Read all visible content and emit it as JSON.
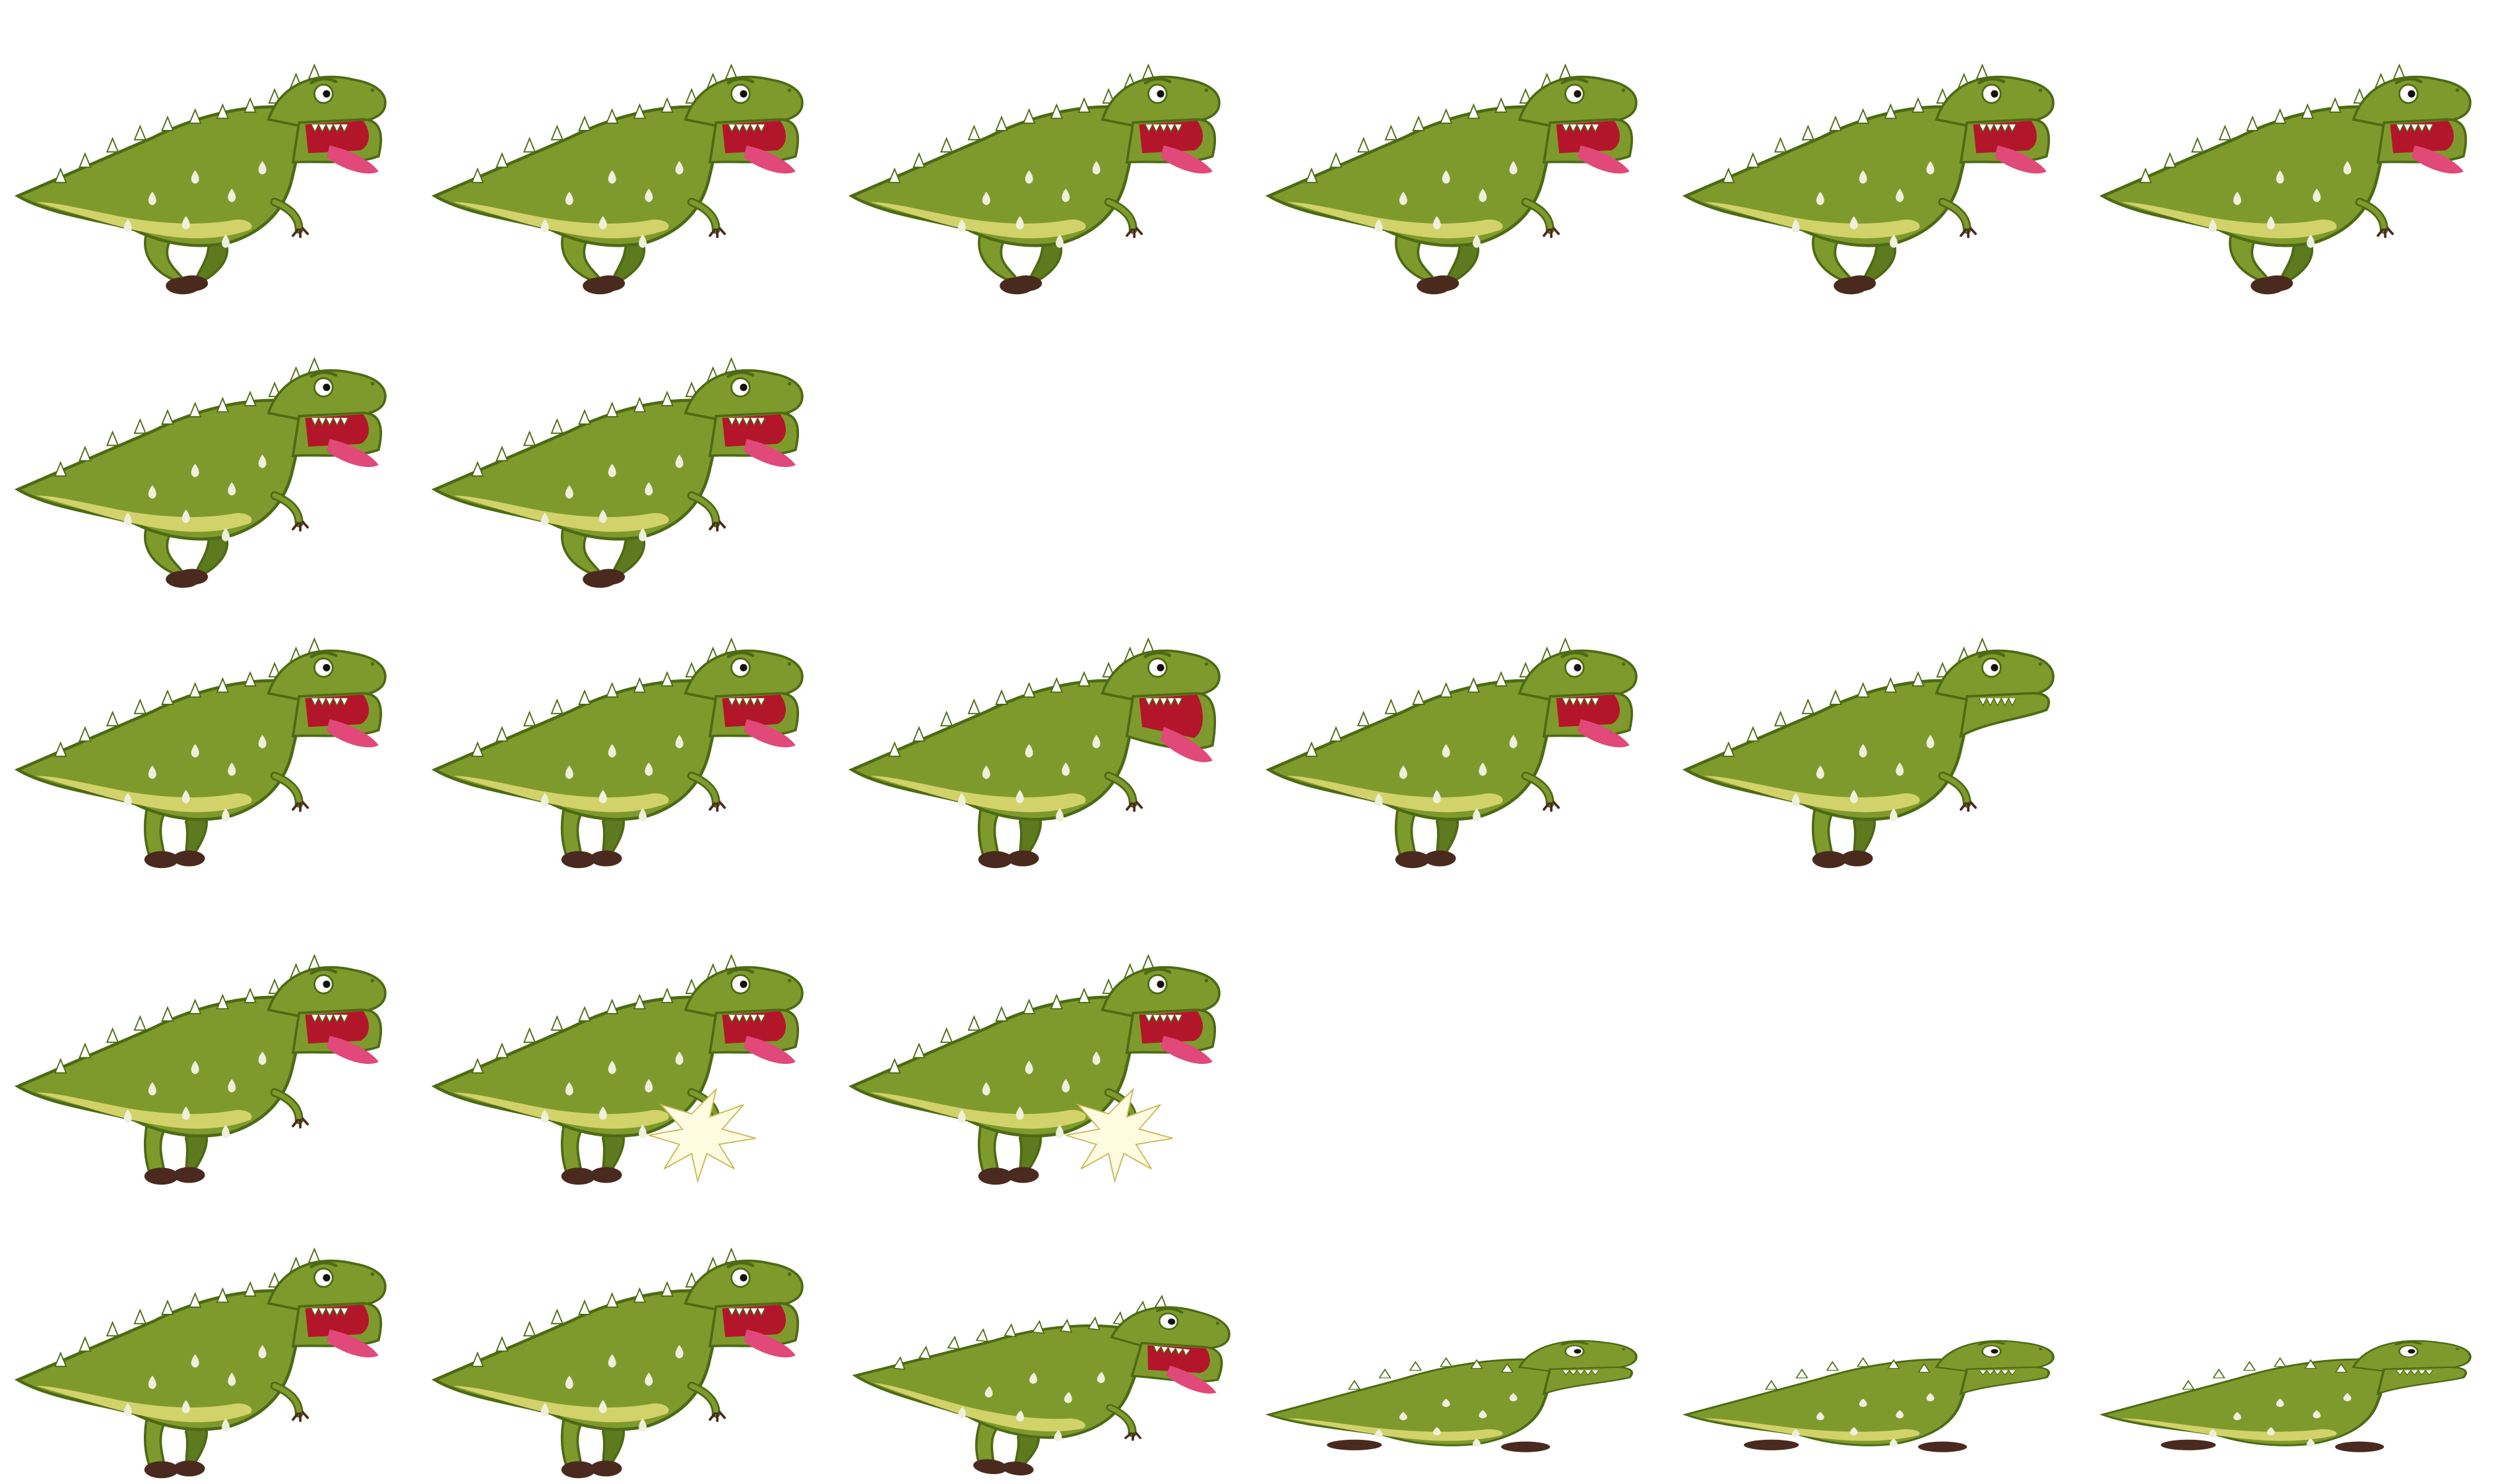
{
  "sprite_sheet": {
    "subject": "trex-dinosaur",
    "colors": {
      "body": "#7f9a2c",
      "body_dark": "#5e7a1f",
      "outline": "#4d6a14",
      "belly": "#d2d26a",
      "spot": "#eef0dc",
      "mouth": "#b3162a",
      "tongue": "#e0497a",
      "claw": "#4a2a1e",
      "eye": "#ffffff",
      "pupil": "#111111",
      "spike": "#ffffff",
      "flash": "#fffbe0"
    },
    "rows": [
      {
        "name": "run",
        "frames": [
          {
            "pose": "run"
          },
          {
            "pose": "run"
          },
          {
            "pose": "run"
          },
          {
            "pose": "run"
          },
          {
            "pose": "run"
          },
          {
            "pose": "run"
          }
        ]
      },
      {
        "name": "run-2",
        "frames": [
          {
            "pose": "run"
          },
          {
            "pose": "run"
          }
        ]
      },
      {
        "name": "idle-roar",
        "frames": [
          {
            "pose": "stand"
          },
          {
            "pose": "stand"
          },
          {
            "pose": "roar"
          },
          {
            "pose": "stand"
          },
          {
            "pose": "stand-closed"
          }
        ]
      },
      {
        "name": "hurt",
        "frames": [
          {
            "pose": "stand"
          },
          {
            "pose": "hit"
          },
          {
            "pose": "hit"
          }
        ]
      },
      {
        "name": "death",
        "frames": [
          {
            "pose": "stand"
          },
          {
            "pose": "stand"
          },
          {
            "pose": "fall"
          },
          {
            "pose": "lying"
          },
          {
            "pose": "lying"
          },
          {
            "pose": "lying"
          }
        ]
      }
    ]
  }
}
